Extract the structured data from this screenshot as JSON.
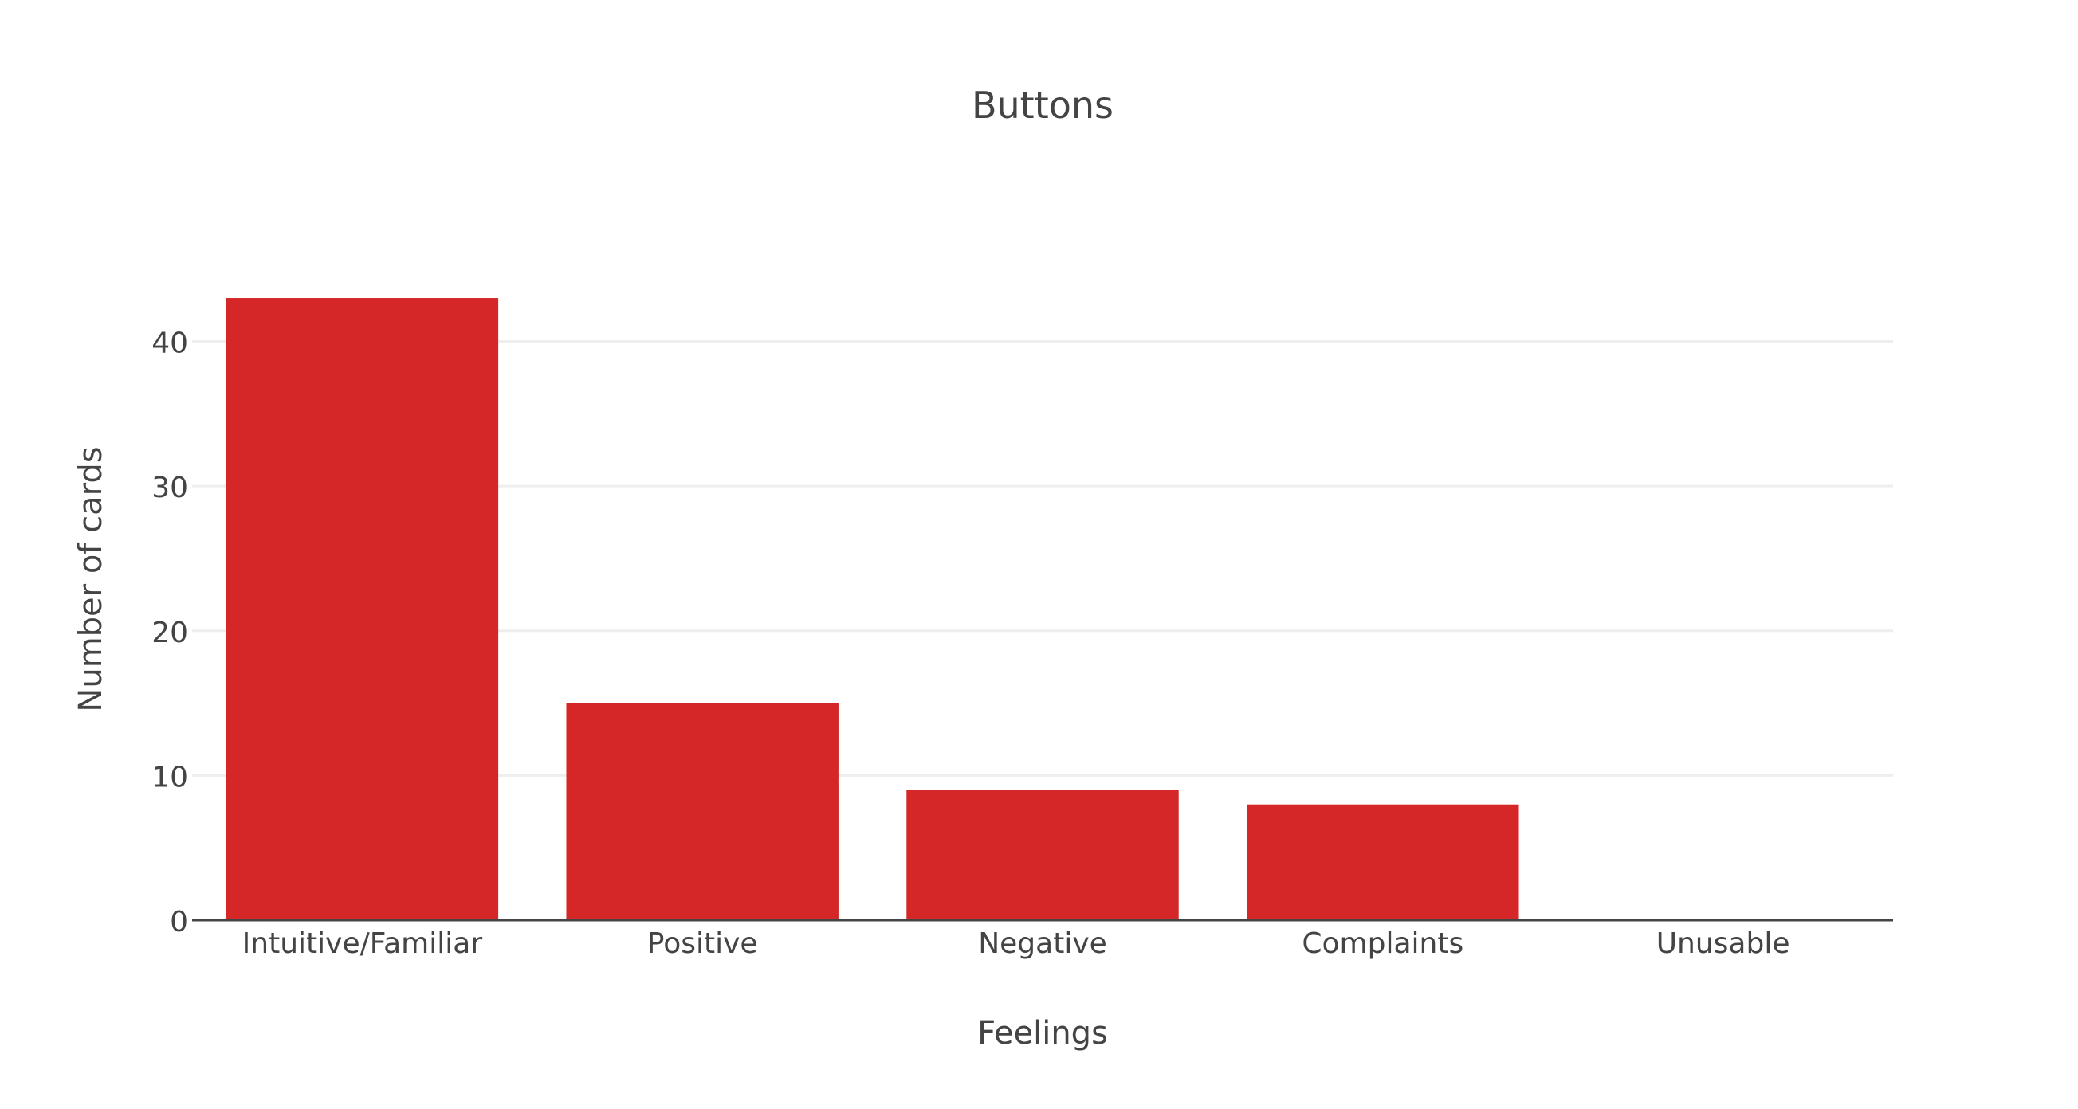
{
  "colors": {
    "bar": "#d62728",
    "grid": "#eeeeee",
    "axis": "#444444",
    "text": "#444444",
    "background": "#ffffff"
  },
  "chart_data": {
    "type": "bar",
    "title": "Buttons",
    "xlabel": "Feelings",
    "ylabel": "Number of cards",
    "categories": [
      "Intuitive/Familiar",
      "Positive",
      "Negative",
      "Complaints",
      "Unusable"
    ],
    "values": [
      43,
      15,
      9,
      8,
      0
    ],
    "ylim": [
      0,
      45.26
    ],
    "yticks": [
      0,
      10,
      20,
      30,
      40
    ],
    "grid": true,
    "legend": "none"
  }
}
